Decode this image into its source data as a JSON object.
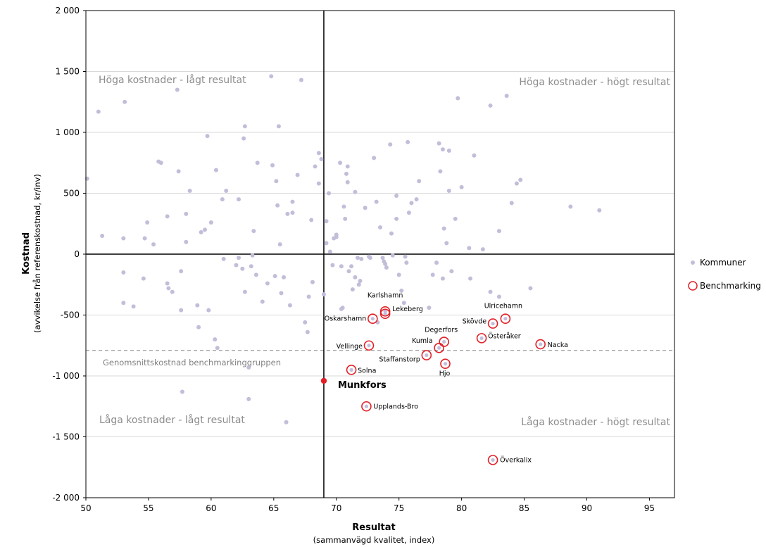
{
  "chart_data": {
    "type": "scatter",
    "title": "",
    "xlabel": "Resultat",
    "xlabel_sub": "(sammanvägd kvalitet, index)",
    "ylabel": "Kostnad",
    "ylabel_sub": "(avvikelse från referenskostnad, kr/inv)",
    "xlim": [
      50,
      97
    ],
    "ylim": [
      -2000,
      2000
    ],
    "x_ticks": [
      50,
      55,
      60,
      65,
      70,
      75,
      80,
      85,
      90,
      95
    ],
    "y_ticks": [
      -2000,
      -1500,
      -1000,
      -500,
      0,
      500,
      1000,
      1500,
      2000
    ],
    "y_tick_labels": [
      "-2 000",
      "-1 500",
      "-1 000",
      "-500",
      "0",
      "500",
      "1 000",
      "1 500",
      "2 000"
    ],
    "grid": true,
    "legend_position": "right",
    "colors": {
      "kommuner": "#c3bdd9",
      "benchmarking": "#e21f26",
      "focus": "#e21f26",
      "avg_line": "#a6a6a6"
    },
    "reference_lines": {
      "vertical_x": 69,
      "horizontal_y": 0,
      "average": {
        "y": -790,
        "label": "Genomsnittskostnad benchmarkinggruppen"
      }
    },
    "quadrant_labels": {
      "top_left": "Höga kostnader - lågt resultat",
      "top_right": "Höga kostnader - högt resultat",
      "bottom_left": "Låga kostnader - lågt resultat",
      "bottom_right": "Låga kostnader - högt resultat"
    },
    "focus_point": {
      "name": "Munkfors",
      "x": 69,
      "y": -1040
    },
    "series": [
      {
        "name": "Kommuner",
        "points": [
          [
            50.1,
            620
          ],
          [
            51.3,
            150
          ],
          [
            51,
            1170
          ],
          [
            53.1,
            1250
          ],
          [
            53,
            130
          ],
          [
            53,
            -150
          ],
          [
            53,
            -400
          ],
          [
            53.8,
            -430
          ],
          [
            54.6,
            -200
          ],
          [
            54.7,
            130
          ],
          [
            54.9,
            260
          ],
          [
            55.4,
            80
          ],
          [
            55.8,
            760
          ],
          [
            56,
            750
          ],
          [
            56.5,
            -240
          ],
          [
            56.5,
            310
          ],
          [
            56.6,
            -280
          ],
          [
            56.9,
            -310
          ],
          [
            57.3,
            1350
          ],
          [
            57.4,
            680
          ],
          [
            57.6,
            -140
          ],
          [
            57.6,
            -460
          ],
          [
            57.7,
            -1130
          ],
          [
            58,
            330
          ],
          [
            58,
            100
          ],
          [
            58.3,
            520
          ],
          [
            58.9,
            -420
          ],
          [
            59,
            -600
          ],
          [
            59.2,
            180
          ],
          [
            59.5,
            200
          ],
          [
            59.7,
            970
          ],
          [
            59.8,
            -460
          ],
          [
            60,
            260
          ],
          [
            60.3,
            -700
          ],
          [
            60.4,
            690
          ],
          [
            60.5,
            -770
          ],
          [
            60.9,
            450
          ],
          [
            61,
            -40
          ],
          [
            61.2,
            520
          ],
          [
            62,
            -90
          ],
          [
            62.2,
            -30
          ],
          [
            62.2,
            450
          ],
          [
            62.5,
            -120
          ],
          [
            62.6,
            950
          ],
          [
            62.7,
            1050
          ],
          [
            62.7,
            -310
          ],
          [
            63,
            -930
          ],
          [
            63,
            -1190
          ],
          [
            63.2,
            -100
          ],
          [
            63.3,
            -10
          ],
          [
            63.4,
            190
          ],
          [
            63.6,
            -170
          ],
          [
            63.7,
            750
          ],
          [
            64.1,
            -390
          ],
          [
            64.5,
            -240
          ],
          [
            64.8,
            1460
          ],
          [
            64.9,
            730
          ],
          [
            65.1,
            -180
          ],
          [
            65.2,
            600
          ],
          [
            65.3,
            400
          ],
          [
            65.5,
            80
          ],
          [
            65.6,
            -320
          ],
          [
            65.8,
            -190
          ],
          [
            65.4,
            1050
          ],
          [
            66,
            -1380
          ],
          [
            66.1,
            330
          ],
          [
            66.3,
            -420
          ],
          [
            66.5,
            430
          ],
          [
            66.5,
            340
          ],
          [
            66.9,
            650
          ],
          [
            67.2,
            1430
          ],
          [
            67.5,
            -560
          ],
          [
            67.7,
            -640
          ],
          [
            67.8,
            -350
          ],
          [
            68,
            280
          ],
          [
            68.1,
            -230
          ],
          [
            68.3,
            720
          ],
          [
            68.6,
            830
          ],
          [
            68.6,
            580
          ],
          [
            68.8,
            780
          ],
          [
            69,
            -330
          ],
          [
            69.2,
            90
          ],
          [
            69.2,
            270
          ],
          [
            69.4,
            500
          ],
          [
            69.5,
            20
          ],
          [
            69.7,
            -90
          ],
          [
            69.8,
            130
          ],
          [
            70,
            140
          ],
          [
            70,
            160
          ],
          [
            70.3,
            750
          ],
          [
            70.4,
            -100
          ],
          [
            70.4,
            -450
          ],
          [
            70.5,
            -440
          ],
          [
            70.6,
            390
          ],
          [
            70.7,
            290
          ],
          [
            70.8,
            660
          ],
          [
            70.9,
            590
          ],
          [
            70.9,
            720
          ],
          [
            71,
            -140
          ],
          [
            71.2,
            -100
          ],
          [
            71.3,
            -290
          ],
          [
            71.5,
            510
          ],
          [
            71.5,
            -190
          ],
          [
            71.7,
            -30
          ],
          [
            71.8,
            -250
          ],
          [
            71.9,
            -220
          ],
          [
            72,
            -40
          ],
          [
            72.3,
            380
          ],
          [
            72.6,
            -20
          ],
          [
            72.7,
            -30
          ],
          [
            73,
            790
          ],
          [
            73.2,
            430
          ],
          [
            73.3,
            -560
          ],
          [
            73.5,
            220
          ],
          [
            73.7,
            -30
          ],
          [
            73.8,
            -60
          ],
          [
            73.9,
            -80
          ],
          [
            74,
            -110
          ],
          [
            74.3,
            900
          ],
          [
            74.4,
            170
          ],
          [
            74.5,
            -10
          ],
          [
            74.8,
            480
          ],
          [
            74.8,
            290
          ],
          [
            75,
            -170
          ],
          [
            75.2,
            -300
          ],
          [
            75.4,
            -400
          ],
          [
            75.5,
            -20
          ],
          [
            75.6,
            -70
          ],
          [
            75.7,
            920
          ],
          [
            75.8,
            340
          ],
          [
            76,
            420
          ],
          [
            76.4,
            450
          ],
          [
            76.6,
            600
          ],
          [
            77.4,
            -440
          ],
          [
            77.7,
            -170
          ],
          [
            78,
            -70
          ],
          [
            78.2,
            910
          ],
          [
            78.3,
            680
          ],
          [
            78.5,
            860
          ],
          [
            78.5,
            -200
          ],
          [
            78.6,
            210
          ],
          [
            78.8,
            90
          ],
          [
            79,
            520
          ],
          [
            79,
            850
          ],
          [
            79.2,
            -140
          ],
          [
            79.5,
            290
          ],
          [
            79.7,
            1280
          ],
          [
            80,
            550
          ],
          [
            80.6,
            50
          ],
          [
            80.7,
            -200
          ],
          [
            81,
            810
          ],
          [
            81.7,
            40
          ],
          [
            82.3,
            -310
          ],
          [
            82.3,
            1220
          ],
          [
            83,
            -350
          ],
          [
            83,
            190
          ],
          [
            83.6,
            1300
          ],
          [
            84,
            420
          ],
          [
            84.4,
            580
          ],
          [
            84.7,
            610
          ],
          [
            85.5,
            -280
          ],
          [
            88.7,
            390
          ],
          [
            91,
            360
          ]
        ]
      },
      {
        "name": "Benchmarking",
        "points": [
          {
            "name": "Karlshamn",
            "x": 73.9,
            "y": -470
          },
          {
            "name": "Lekeberg",
            "x": 73.9,
            "y": -490
          },
          {
            "name": "Oskarshamn",
            "x": 72.9,
            "y": -530
          },
          {
            "name": "Ulricehamn",
            "x": 83.5,
            "y": -530
          },
          {
            "name": "Skövde",
            "x": 82.5,
            "y": -570
          },
          {
            "name": "Degerfors",
            "x": 78.6,
            "y": -720
          },
          {
            "name": "Österåker",
            "x": 81.6,
            "y": -690
          },
          {
            "name": "Nacka",
            "x": 86.3,
            "y": -740
          },
          {
            "name": "Kumla",
            "x": 78.2,
            "y": -770
          },
          {
            "name": "Vellinge",
            "x": 72.6,
            "y": -750
          },
          {
            "name": "Staffanstorp",
            "x": 77.2,
            "y": -830
          },
          {
            "name": "Hjo",
            "x": 78.7,
            "y": -900
          },
          {
            "name": "Solna",
            "x": 71.2,
            "y": -950
          },
          {
            "name": "Upplands-Bro",
            "x": 72.4,
            "y": -1250
          },
          {
            "name": "Överkalix",
            "x": 82.5,
            "y": -1690
          }
        ]
      }
    ]
  },
  "legend": {
    "items": [
      {
        "label": "Kommuner"
      },
      {
        "label": "Benchmarking"
      }
    ]
  }
}
